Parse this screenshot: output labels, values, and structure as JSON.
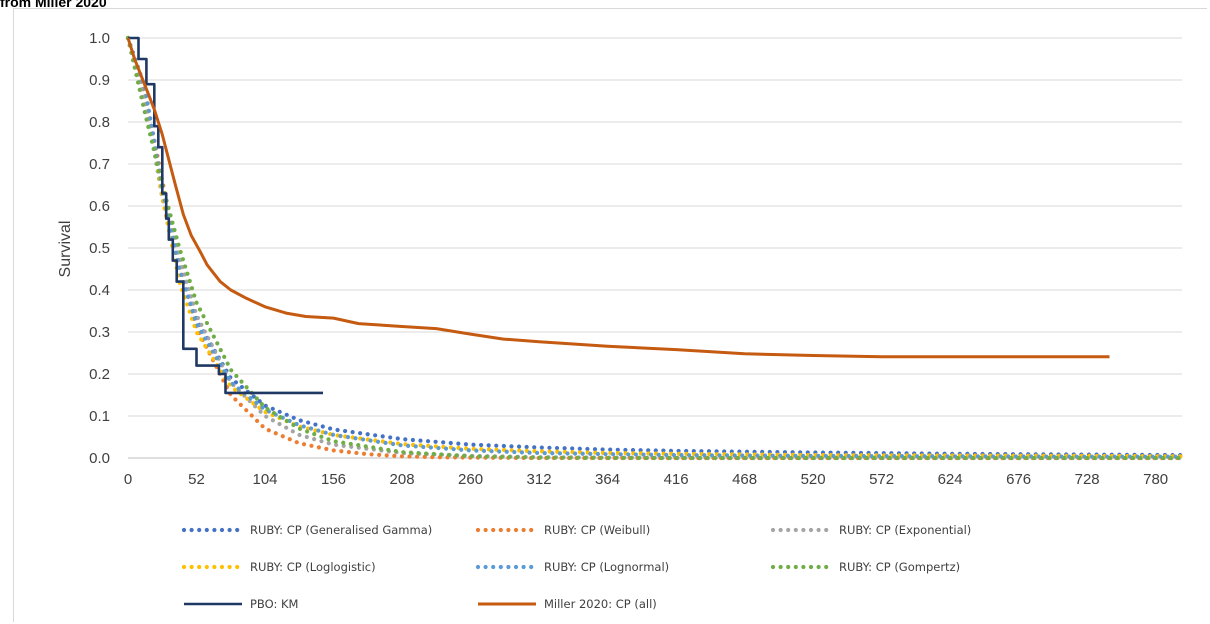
{
  "caption": "from Miller 2020",
  "chart_data": {
    "type": "line",
    "title": "",
    "xlabel": "",
    "ylabel": "Survival",
    "xlim": [
      0,
      800
    ],
    "ylim": [
      0,
      1.0
    ],
    "x_ticks": [
      0,
      52,
      104,
      156,
      208,
      260,
      312,
      364,
      416,
      468,
      520,
      572,
      624,
      676,
      728,
      780
    ],
    "y_ticks": [
      0.0,
      0.1,
      0.2,
      0.3,
      0.4,
      0.5,
      0.6,
      0.7,
      0.8,
      0.9,
      1.0
    ],
    "y_tick_labels": [
      "0.0",
      "0.1",
      "0.2",
      "0.3",
      "0.4",
      "0.5",
      "0.6",
      "0.7",
      "0.8",
      "0.9",
      "1.0"
    ],
    "grid": "horizontal",
    "legend_position": "bottom",
    "series": [
      {
        "name": "RUBY: CP (Generalised Gamma)",
        "color": "#4472c4",
        "style": "dotted",
        "x": [
          0,
          13,
          26,
          39,
          52,
          78,
          104,
          130,
          156,
          208,
          260,
          312,
          364,
          416,
          520,
          624,
          728,
          800
        ],
        "y": [
          1.0,
          0.86,
          0.62,
          0.45,
          0.33,
          0.19,
          0.125,
          0.09,
          0.068,
          0.045,
          0.032,
          0.025,
          0.02,
          0.017,
          0.013,
          0.01,
          0.008,
          0.007
        ]
      },
      {
        "name": "RUBY: CP (Weibull)",
        "color": "#ed7d31",
        "style": "dotted",
        "x": [
          0,
          13,
          26,
          39,
          52,
          78,
          104,
          130,
          156,
          182,
          208,
          234,
          260,
          312,
          800
        ],
        "y": [
          1.0,
          0.87,
          0.66,
          0.46,
          0.31,
          0.15,
          0.07,
          0.035,
          0.018,
          0.009,
          0.004,
          0.002,
          0.001,
          0.0,
          0.0
        ]
      },
      {
        "name": "RUBY: CP (Exponential)",
        "color": "#a5a5a5",
        "style": "dotted",
        "x": [
          0,
          13,
          26,
          39,
          52,
          78,
          104,
          130,
          156,
          208,
          260,
          312,
          364,
          416,
          800
        ],
        "y": [
          1.0,
          0.84,
          0.65,
          0.48,
          0.34,
          0.18,
          0.1,
          0.055,
          0.032,
          0.012,
          0.005,
          0.002,
          0.001,
          0.0,
          0.0
        ]
      },
      {
        "name": "RUBY: CP (Loglogistic)",
        "color": "#ffc000",
        "style": "dotted",
        "x": [
          0,
          13,
          26,
          39,
          52,
          78,
          104,
          130,
          156,
          208,
          260,
          312,
          364,
          416,
          520,
          624,
          728,
          800
        ],
        "y": [
          1.0,
          0.88,
          0.62,
          0.42,
          0.3,
          0.17,
          0.11,
          0.075,
          0.055,
          0.033,
          0.022,
          0.016,
          0.012,
          0.01,
          0.007,
          0.006,
          0.005,
          0.004
        ]
      },
      {
        "name": "RUBY: CP (Lognormal)",
        "color": "#5b9bd5",
        "style": "dotted",
        "x": [
          0,
          13,
          26,
          39,
          52,
          78,
          104,
          130,
          156,
          208,
          260,
          312,
          364,
          416,
          520,
          624,
          728,
          800
        ],
        "y": [
          1.0,
          0.88,
          0.64,
          0.45,
          0.32,
          0.18,
          0.115,
          0.078,
          0.055,
          0.03,
          0.018,
          0.012,
          0.009,
          0.007,
          0.005,
          0.004,
          0.003,
          0.003
        ]
      },
      {
        "name": "RUBY: CP (Gompertz)",
        "color": "#70ad47",
        "style": "dotted",
        "x": [
          0,
          13,
          26,
          39,
          52,
          78,
          104,
          130,
          156,
          208,
          260,
          312,
          364,
          800
        ],
        "y": [
          1.0,
          0.82,
          0.65,
          0.5,
          0.37,
          0.21,
          0.12,
          0.07,
          0.04,
          0.014,
          0.004,
          0.001,
          0.0,
          0.0
        ]
      },
      {
        "name": "PBO: KM",
        "color": "#203864",
        "style": "step",
        "x": [
          0,
          8,
          14,
          20,
          23,
          26,
          29,
          31,
          34,
          37,
          42,
          44,
          52,
          69,
          74,
          148
        ],
        "y": [
          1.0,
          0.95,
          0.89,
          0.79,
          0.74,
          0.63,
          0.57,
          0.52,
          0.47,
          0.42,
          0.26,
          0.26,
          0.22,
          0.2,
          0.155,
          0.155
        ]
      },
      {
        "name": "Miller 2020: CP (all)",
        "color": "#c55a11",
        "style": "solid",
        "x": [
          0,
          5,
          10,
          15,
          20,
          26,
          31,
          36,
          42,
          48,
          55,
          60,
          65,
          70,
          78,
          90,
          104,
          120,
          135,
          156,
          175,
          208,
          234,
          260,
          285,
          312,
          364,
          416,
          468,
          520,
          572,
          624,
          676,
          745
        ],
        "y": [
          1.0,
          0.95,
          0.91,
          0.87,
          0.83,
          0.77,
          0.71,
          0.65,
          0.58,
          0.53,
          0.49,
          0.46,
          0.44,
          0.42,
          0.4,
          0.38,
          0.36,
          0.345,
          0.337,
          0.333,
          0.32,
          0.313,
          0.308,
          0.295,
          0.283,
          0.277,
          0.266,
          0.258,
          0.248,
          0.244,
          0.241,
          0.241,
          0.241,
          0.241
        ]
      }
    ]
  }
}
